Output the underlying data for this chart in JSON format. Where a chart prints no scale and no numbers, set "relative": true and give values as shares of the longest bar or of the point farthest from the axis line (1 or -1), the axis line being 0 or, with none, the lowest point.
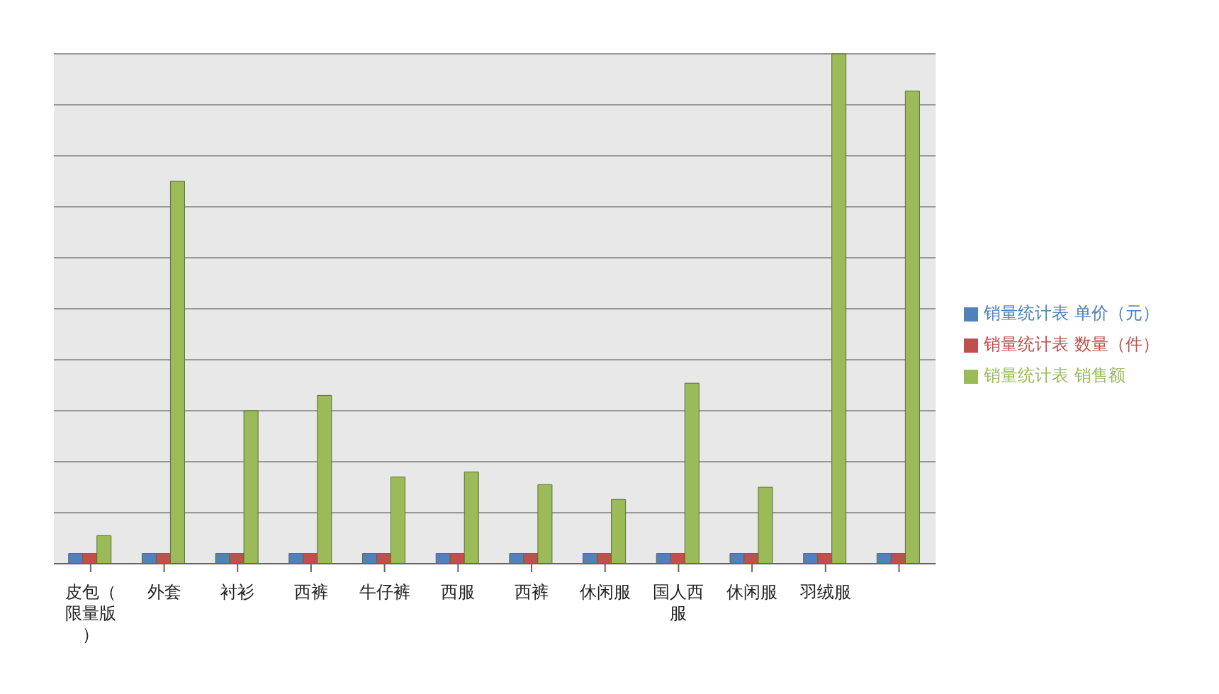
{
  "chart_data": {
    "type": "bar",
    "relative": true,
    "categories": [
      "皮包（限量版）",
      "外套",
      "衬衫",
      "西裤",
      "牛仔裤",
      "西服",
      "西裤",
      "休闲服",
      "国人西服",
      "休闲服",
      "羽绒服",
      null
    ],
    "series": [
      {
        "name": "销量统计表 单价（元）",
        "color": "#4f81bd",
        "values": [
          0.02,
          0.02,
          0.02,
          0.02,
          0.02,
          0.02,
          0.02,
          0.02,
          0.02,
          0.02,
          0.02,
          0.02
        ]
      },
      {
        "name": "销量统计表 数量（件）",
        "color": "#c0504d",
        "values": [
          0.02,
          0.02,
          0.02,
          0.02,
          0.02,
          0.02,
          0.02,
          0.02,
          0.02,
          0.02,
          0.02,
          0.02
        ]
      },
      {
        "name": "销量统计表 销售额",
        "color": "#9bbb59",
        "values": [
          0.055,
          0.75,
          0.3,
          0.33,
          0.17,
          0.18,
          0.155,
          0.126,
          0.354,
          0.15,
          1,
          0.927
        ]
      }
    ],
    "grid": "y",
    "legend": "right"
  }
}
